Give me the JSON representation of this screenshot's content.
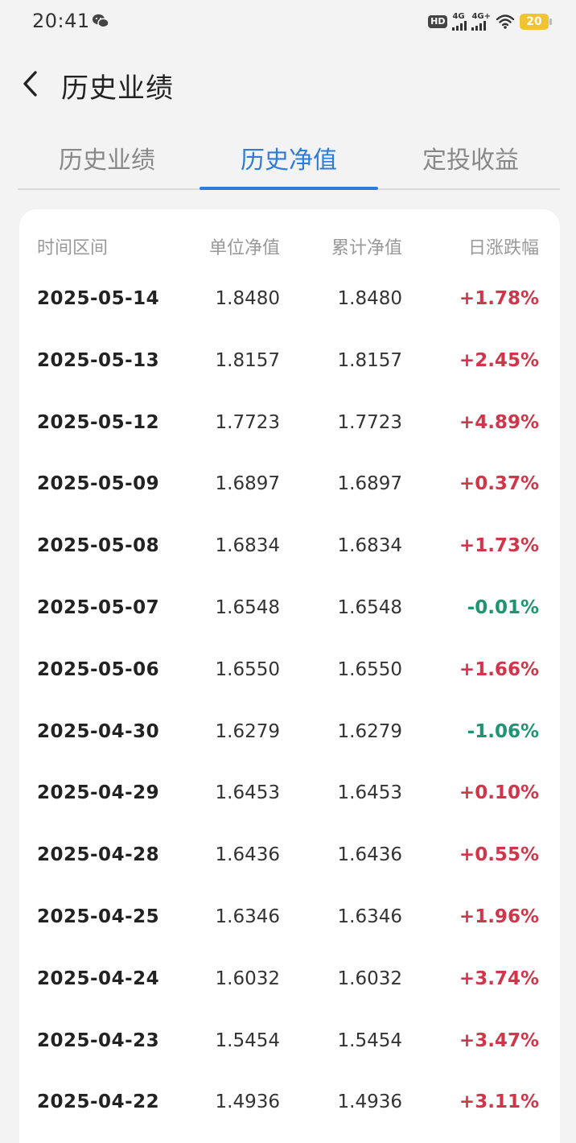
{
  "status_bar": {
    "time": "20:41",
    "hd": "HD",
    "signal1": "4G",
    "signal2": "4G+",
    "battery": "20",
    "icons": [
      "wechat-icon",
      "wifi-icon",
      "battery-icon",
      "signal-icon"
    ]
  },
  "header": {
    "title": "历史业绩",
    "back_icon": "chevron-left-icon"
  },
  "tabs": [
    {
      "label": "历史业绩",
      "active": false
    },
    {
      "label": "历史净值",
      "active": true
    },
    {
      "label": "定投收益",
      "active": false
    }
  ],
  "table": {
    "columns": [
      "时间区间",
      "单位净值",
      "累计净值",
      "日涨跌幅"
    ],
    "rows": [
      {
        "date": "2025-05-14",
        "unit_nav": "1.8480",
        "acc_nav": "1.8480",
        "change": "+1.78%",
        "dir": "up"
      },
      {
        "date": "2025-05-13",
        "unit_nav": "1.8157",
        "acc_nav": "1.8157",
        "change": "+2.45%",
        "dir": "up"
      },
      {
        "date": "2025-05-12",
        "unit_nav": "1.7723",
        "acc_nav": "1.7723",
        "change": "+4.89%",
        "dir": "up"
      },
      {
        "date": "2025-05-09",
        "unit_nav": "1.6897",
        "acc_nav": "1.6897",
        "change": "+0.37%",
        "dir": "up"
      },
      {
        "date": "2025-05-08",
        "unit_nav": "1.6834",
        "acc_nav": "1.6834",
        "change": "+1.73%",
        "dir": "up"
      },
      {
        "date": "2025-05-07",
        "unit_nav": "1.6548",
        "acc_nav": "1.6548",
        "change": "-0.01%",
        "dir": "down"
      },
      {
        "date": "2025-05-06",
        "unit_nav": "1.6550",
        "acc_nav": "1.6550",
        "change": "+1.66%",
        "dir": "up"
      },
      {
        "date": "2025-04-30",
        "unit_nav": "1.6279",
        "acc_nav": "1.6279",
        "change": "-1.06%",
        "dir": "down"
      },
      {
        "date": "2025-04-29",
        "unit_nav": "1.6453",
        "acc_nav": "1.6453",
        "change": "+0.10%",
        "dir": "up"
      },
      {
        "date": "2025-04-28",
        "unit_nav": "1.6436",
        "acc_nav": "1.6436",
        "change": "+0.55%",
        "dir": "up"
      },
      {
        "date": "2025-04-25",
        "unit_nav": "1.6346",
        "acc_nav": "1.6346",
        "change": "+1.96%",
        "dir": "up"
      },
      {
        "date": "2025-04-24",
        "unit_nav": "1.6032",
        "acc_nav": "1.6032",
        "change": "+3.74%",
        "dir": "up"
      },
      {
        "date": "2025-04-23",
        "unit_nav": "1.5454",
        "acc_nav": "1.5454",
        "change": "+3.47%",
        "dir": "up"
      },
      {
        "date": "2025-04-22",
        "unit_nav": "1.4936",
        "acc_nav": "1.4936",
        "change": "+3.11%",
        "dir": "up"
      }
    ]
  },
  "colors": {
    "accent": "#2f7bd8",
    "up": "#d0354a",
    "down": "#1e9470",
    "background": "#f3f3f3"
  }
}
